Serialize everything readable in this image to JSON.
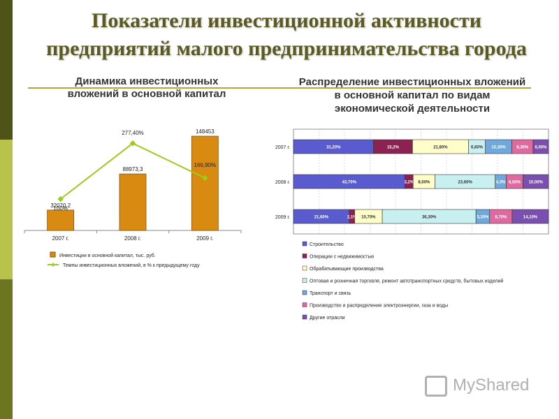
{
  "page": {
    "title_line1": "Показатели инвестиционной активности",
    "title_line2": "предприятий малого предпринимательства города",
    "left_subtitle_line1": "Динамика инвестиционных",
    "left_subtitle_line2": "вложений в основной капитал",
    "right_subtitle_line1": "Распределение инвестиционных вложений",
    "right_subtitle_line2": "в основной капитал по видам",
    "right_subtitle_line3": "экономической деятельности",
    "logo_text": "MyShared"
  },
  "colors": {
    "bar": "#d98a10",
    "line": "#9acd1a",
    "construction": "#5b5bd0",
    "realestate": "#8b2252",
    "manufacturing": "#fffdc8",
    "trade": "#c8f0f0",
    "transport": "#6fa8dc",
    "energy": "#e06aa0",
    "other": "#7b4fb0"
  },
  "chart_data": [
    {
      "type": "bar",
      "categories": [
        "2007 г.",
        "2008 г.",
        "2009 г."
      ],
      "series": [
        {
          "name": "Инвестиции в основной капитал, тыс. руб.",
          "values": [
            32070.2,
            88973.3,
            148453
          ],
          "labels": [
            "32070,2",
            "88973,3",
            "148453"
          ]
        },
        {
          "name": "Темпы инвестиционных вложений, в % к предыдущему году",
          "type": "line",
          "values": [
            100,
            277.4,
            166.9
          ],
          "labels": [
            "100%",
            "277,40%",
            "166,90%"
          ]
        }
      ],
      "title": "Динамика инвестиционных вложений в основной капитал"
    },
    {
      "type": "bar",
      "orientation": "horizontal-stacked-100",
      "categories": [
        "2007 г.",
        "2008 г.",
        "2009 г."
      ],
      "series": [
        {
          "name": "Строительство",
          "values": [
            31.2,
            43.7,
            21.6
          ],
          "labels": [
            "31,20%",
            "43,70%",
            "21,60%"
          ]
        },
        {
          "name": "Операции с недвижимостью",
          "values": [
            15.2,
            3.2,
            2.1
          ],
          "labels": [
            "15,2%",
            "3,2%",
            "2,1%"
          ]
        },
        {
          "name": "Обрабатывающие производства",
          "values": [
            21.8,
            8.6,
            10.7
          ],
          "labels": [
            "21,80%",
            "8,60%",
            "10,70%"
          ]
        },
        {
          "name": "Оптовая и розничная торговля, ремонт автотранспортных средств, бытовых изделий",
          "values": [
            6.6,
            23.6,
            36.3
          ],
          "labels": [
            "6,60%",
            "23,60%",
            "36,30%"
          ]
        },
        {
          "name": "Транспорт и связь",
          "values": [
            10.3,
            4.3,
            5.3
          ],
          "labels": [
            "10,30%",
            "4,3%",
            "5,30%"
          ]
        },
        {
          "name": "Производство и распределение электроэнергии, газа и воды",
          "values": [
            8.3,
            6.6,
            8.7
          ],
          "labels": [
            "8,30%",
            "6,60%",
            "8,70%"
          ]
        },
        {
          "name": "Другие отрасли",
          "values": [
            6.0,
            10.0,
            14.1
          ],
          "labels": [
            "6,00%",
            "10,00%",
            "14,10%"
          ]
        }
      ],
      "title": "Распределение инвестиционных вложений в основной капитал по видам экономической деятельности",
      "xlim": [
        0,
        100
      ]
    }
  ]
}
